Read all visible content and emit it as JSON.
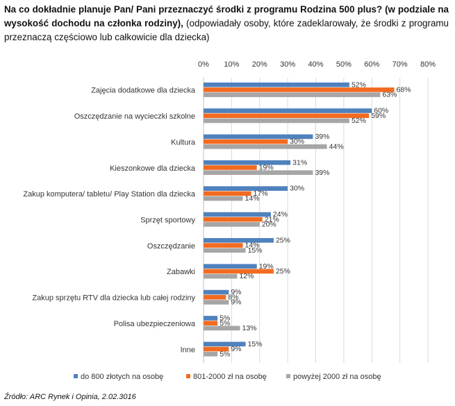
{
  "header": {
    "title_bold_1": "Na co dokładnie planuje Pan/ Pani przeznaczyć środki z programu Rodzina 500 plus? (w podziale na wysokość dochodu na członka rodziny),",
    "title_normal": " (odpowiadały osoby, które zadeklarowały, że środki z programu przeznaczą częściowo lub całkowicie dla dziecka)"
  },
  "source": "Źródło: ARC Rynek i Opinia, 2.02.3016",
  "colors": {
    "series_1": "#4f81bd",
    "series_2": "#f26b21",
    "series_3": "#a6a6a6",
    "grid": "#d9d9d9",
    "axis": "#bfbfbf"
  },
  "chart_data": {
    "type": "bar",
    "orientation": "horizontal",
    "title": "",
    "xlabel": "",
    "ylabel": "",
    "xlim": [
      0,
      80
    ],
    "ticks": [
      "0%",
      "10%",
      "20%",
      "30%",
      "40%",
      "50%",
      "60%",
      "70%",
      "80%"
    ],
    "tick_values": [
      0,
      10,
      20,
      30,
      40,
      50,
      60,
      70,
      80
    ],
    "grid": true,
    "legend_position": "bottom",
    "categories": [
      "Zajęcia dodatkowe dla dziecka",
      "Oszczędzanie na wycieczki szkolne",
      "Kultura",
      "Kieszonkowe dla dziecka",
      "Zakup komputera/ tabletu/ Play Station dla dziecka",
      "Sprzęt sportowy",
      "Oszczędzanie",
      "Zabawki",
      "Zakup sprzętu RTV dla dziecka lub całej rodziny",
      "Polisa ubezpieczeniowa",
      "Inne"
    ],
    "series": [
      {
        "name": "do 800 złotych na osobę",
        "values": [
          52,
          60,
          39,
          31,
          30,
          24,
          25,
          19,
          9,
          5,
          15
        ]
      },
      {
        "name": "801-2000 zł na osobę",
        "values": [
          68,
          59,
          30,
          19,
          17,
          21,
          14,
          25,
          8,
          5,
          9
        ]
      },
      {
        "name": "powyżej 2000 zł na osobę",
        "values": [
          63,
          52,
          44,
          39,
          14,
          20,
          15,
          12,
          9,
          13,
          5
        ]
      }
    ]
  }
}
